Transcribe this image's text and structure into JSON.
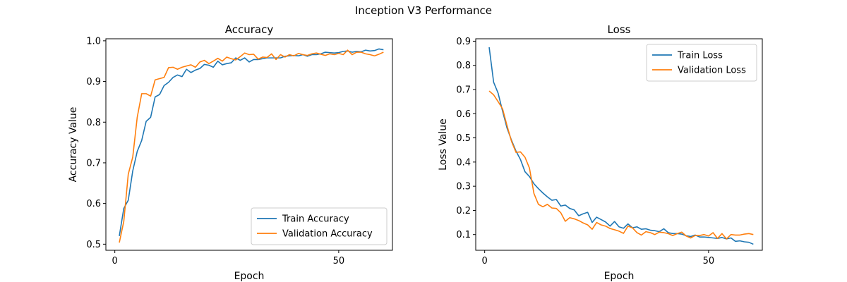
{
  "figure": {
    "suptitle": "Inception V3 Performance"
  },
  "colors": {
    "train": "#1f77b4",
    "validation": "#ff7f0e",
    "axis": "#000000",
    "legend_border": "#cccccc",
    "background": "#ffffff"
  },
  "chart_data": [
    {
      "type": "line",
      "title": "Accuracy",
      "xlabel": "Epoch",
      "ylabel": "Accuracy Value",
      "xlim": [
        -2,
        62
      ],
      "ylim": [
        0.485,
        1.005
      ],
      "xticks": [
        0,
        50
      ],
      "yticks": [
        0.5,
        0.6,
        0.7,
        0.8,
        0.9,
        1.0
      ],
      "ytick_labels": [
        "0.5",
        "0.6",
        "0.7",
        "0.8",
        "0.9",
        "1.0"
      ],
      "grid": false,
      "legend_position": "lower-right",
      "x": [
        1,
        2,
        3,
        4,
        5,
        6,
        7,
        8,
        9,
        10,
        11,
        12,
        13,
        14,
        15,
        16,
        17,
        18,
        19,
        20,
        21,
        22,
        23,
        24,
        25,
        26,
        27,
        28,
        29,
        30,
        31,
        32,
        33,
        34,
        35,
        36,
        37,
        38,
        39,
        40,
        41,
        42,
        43,
        44,
        45,
        46,
        47,
        48,
        49,
        50,
        51,
        52,
        53,
        54,
        55,
        56,
        57,
        58,
        59,
        60
      ],
      "series": [
        {
          "name": "Train Accuracy",
          "color_key": "train",
          "values": [
            0.52,
            0.588,
            0.608,
            0.68,
            0.728,
            0.755,
            0.802,
            0.812,
            0.862,
            0.868,
            0.89,
            0.898,
            0.91,
            0.916,
            0.912,
            0.93,
            0.922,
            0.928,
            0.932,
            0.942,
            0.94,
            0.935,
            0.95,
            0.941,
            0.944,
            0.946,
            0.958,
            0.952,
            0.958,
            0.948,
            0.954,
            0.954,
            0.956,
            0.958,
            0.958,
            0.958,
            0.958,
            0.962,
            0.963,
            0.964,
            0.963,
            0.966,
            0.962,
            0.966,
            0.966,
            0.968,
            0.972,
            0.971,
            0.97,
            0.971,
            0.974,
            0.975,
            0.972,
            0.974,
            0.973,
            0.977,
            0.975,
            0.976,
            0.98,
            0.978
          ]
        },
        {
          "name": "Validation Accuracy",
          "color_key": "validation",
          "values": [
            0.504,
            0.556,
            0.672,
            0.714,
            0.812,
            0.87,
            0.87,
            0.864,
            0.904,
            0.907,
            0.91,
            0.934,
            0.935,
            0.93,
            0.935,
            0.938,
            0.941,
            0.935,
            0.948,
            0.952,
            0.944,
            0.95,
            0.957,
            0.95,
            0.96,
            0.956,
            0.953,
            0.961,
            0.97,
            0.966,
            0.967,
            0.955,
            0.96,
            0.959,
            0.968,
            0.954,
            0.966,
            0.96,
            0.966,
            0.963,
            0.969,
            0.966,
            0.964,
            0.968,
            0.97,
            0.967,
            0.964,
            0.968,
            0.966,
            0.969,
            0.966,
            0.977,
            0.966,
            0.972,
            0.972,
            0.968,
            0.966,
            0.963,
            0.967,
            0.972
          ]
        }
      ]
    },
    {
      "type": "line",
      "title": "Loss",
      "xlabel": "Epoch",
      "ylabel": "Loss Value",
      "xlim": [
        -2,
        62
      ],
      "ylim": [
        0.035,
        0.91
      ],
      "xticks": [
        0,
        50
      ],
      "yticks": [
        0.1,
        0.2,
        0.3,
        0.4,
        0.5,
        0.6,
        0.7,
        0.8,
        0.9
      ],
      "ytick_labels": [
        "0.1",
        "0.2",
        "0.3",
        "0.4",
        "0.5",
        "0.6",
        "0.7",
        "0.8",
        "0.9"
      ],
      "grid": false,
      "legend_position": "upper-right",
      "x": [
        1,
        2,
        3,
        4,
        5,
        6,
        7,
        8,
        9,
        10,
        11,
        12,
        13,
        14,
        15,
        16,
        17,
        18,
        19,
        20,
        21,
        22,
        23,
        24,
        25,
        26,
        27,
        28,
        29,
        30,
        31,
        32,
        33,
        34,
        35,
        36,
        37,
        38,
        39,
        40,
        41,
        42,
        43,
        44,
        45,
        46,
        47,
        48,
        49,
        50,
        51,
        52,
        53,
        54,
        55,
        56,
        57,
        58,
        59,
        60
      ],
      "series": [
        {
          "name": "Train Loss",
          "color_key": "train",
          "values": [
            0.875,
            0.73,
            0.685,
            0.61,
            0.54,
            0.49,
            0.445,
            0.41,
            0.36,
            0.34,
            0.31,
            0.29,
            0.272,
            0.256,
            0.242,
            0.245,
            0.218,
            0.222,
            0.208,
            0.202,
            0.178,
            0.186,
            0.192,
            0.15,
            0.172,
            0.162,
            0.152,
            0.135,
            0.154,
            0.132,
            0.126,
            0.144,
            0.128,
            0.132,
            0.122,
            0.124,
            0.118,
            0.116,
            0.112,
            0.124,
            0.108,
            0.104,
            0.104,
            0.102,
            0.095,
            0.092,
            0.098,
            0.09,
            0.09,
            0.088,
            0.086,
            0.084,
            0.088,
            0.082,
            0.086,
            0.072,
            0.074,
            0.07,
            0.068,
            0.06
          ]
        },
        {
          "name": "Validation Loss",
          "color_key": "validation",
          "values": [
            0.694,
            0.678,
            0.65,
            0.62,
            0.55,
            0.485,
            0.44,
            0.442,
            0.42,
            0.375,
            0.27,
            0.225,
            0.215,
            0.225,
            0.21,
            0.208,
            0.19,
            0.155,
            0.17,
            0.165,
            0.158,
            0.148,
            0.14,
            0.122,
            0.15,
            0.14,
            0.135,
            0.125,
            0.12,
            0.114,
            0.105,
            0.135,
            0.128,
            0.108,
            0.098,
            0.112,
            0.108,
            0.1,
            0.11,
            0.108,
            0.104,
            0.096,
            0.104,
            0.11,
            0.094,
            0.086,
            0.096,
            0.096,
            0.1,
            0.094,
            0.108,
            0.084,
            0.104,
            0.082,
            0.1,
            0.098,
            0.098,
            0.102,
            0.104,
            0.1
          ]
        }
      ]
    }
  ]
}
